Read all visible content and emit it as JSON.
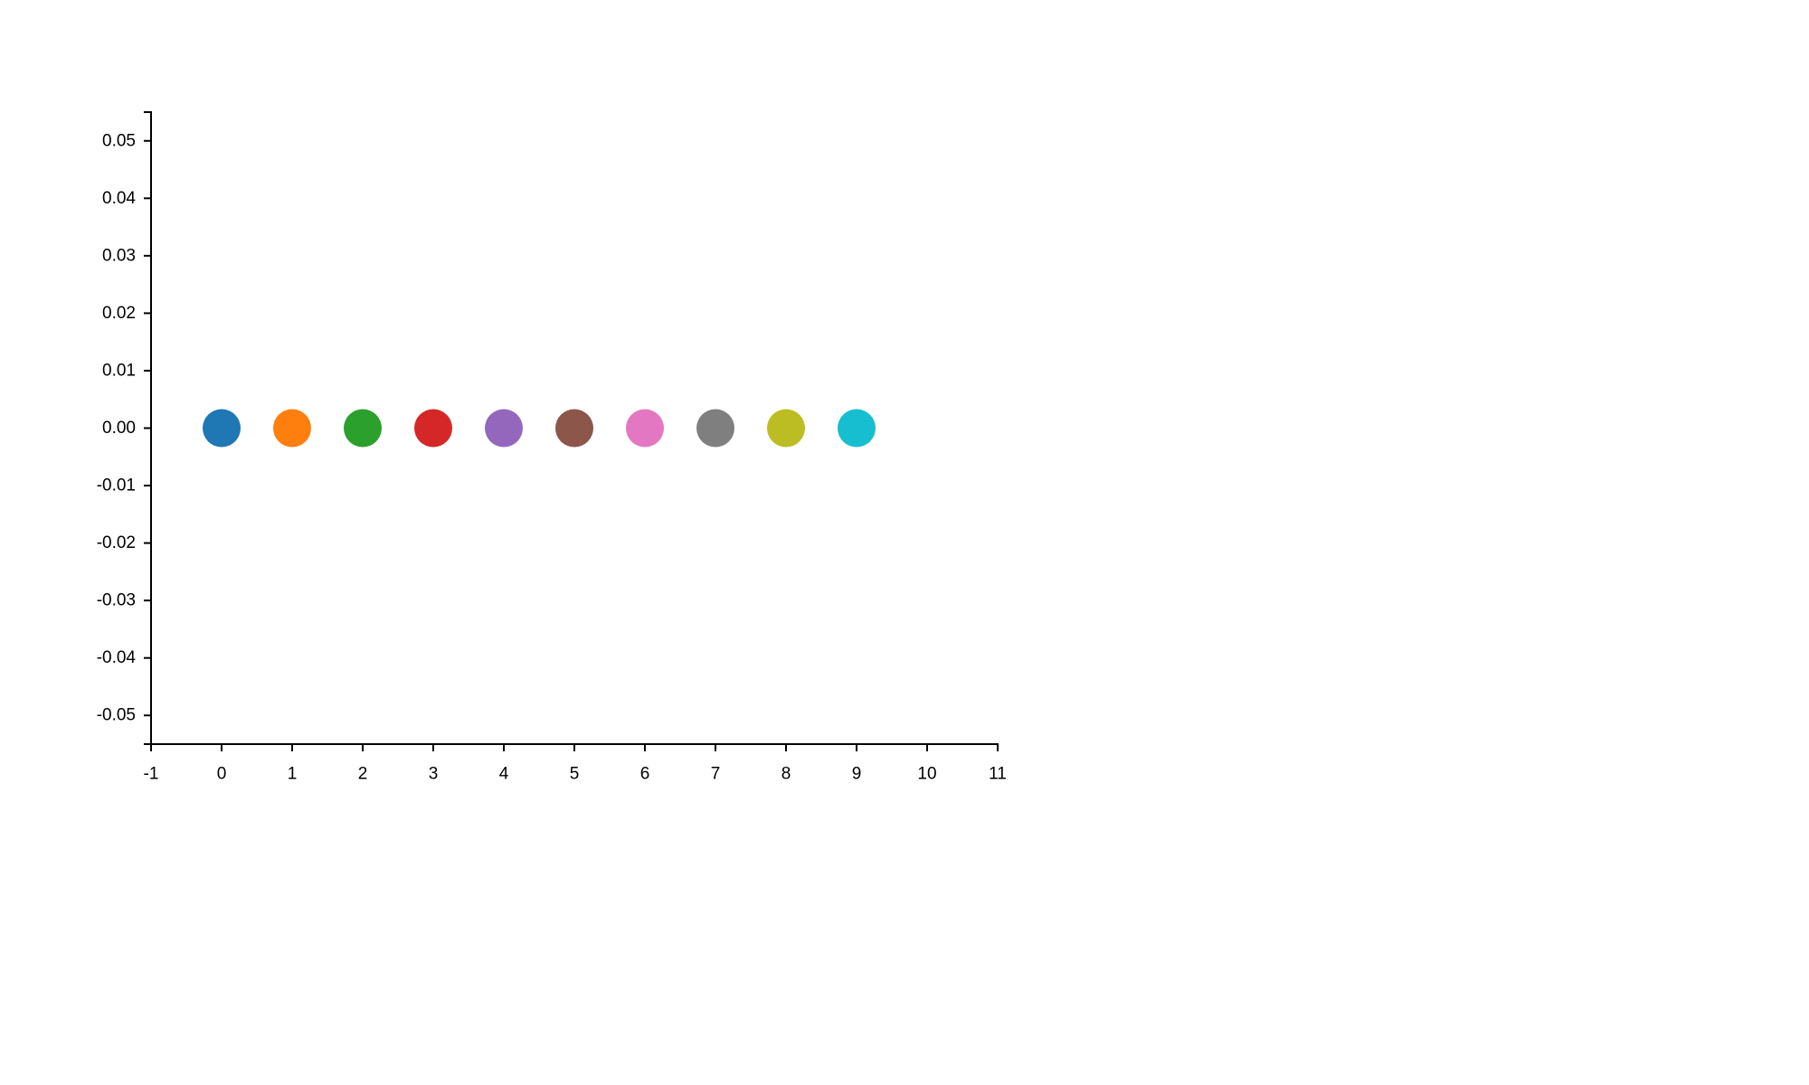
{
  "chart_data": {
    "type": "scatter",
    "title": "",
    "xlabel": "",
    "ylabel": "",
    "xlim": [
      -1,
      11
    ],
    "ylim": [
      -0.055,
      0.055
    ],
    "grid": false,
    "legend": "none",
    "x_ticks": [
      "-1",
      "0",
      "1",
      "2",
      "3",
      "4",
      "5",
      "6",
      "7",
      "8",
      "9",
      "10",
      "11"
    ],
    "y_ticks": [
      "0.05",
      "0.04",
      "0.03",
      "0.02",
      "0.01",
      "0.00",
      "-0.01",
      "-0.02",
      "-0.03",
      "-0.04",
      "-0.05"
    ],
    "points": [
      {
        "x": 0,
        "y": 0,
        "color": "#1f77b4"
      },
      {
        "x": 1,
        "y": 0,
        "color": "#ff7f0e"
      },
      {
        "x": 2,
        "y": 0,
        "color": "#2ca02c"
      },
      {
        "x": 3,
        "y": 0,
        "color": "#d62728"
      },
      {
        "x": 4,
        "y": 0,
        "color": "#9467bd"
      },
      {
        "x": 5,
        "y": 0,
        "color": "#8c564b"
      },
      {
        "x": 6,
        "y": 0,
        "color": "#e377c2"
      },
      {
        "x": 7,
        "y": 0,
        "color": "#7f7f7f"
      },
      {
        "x": 8,
        "y": 0,
        "color": "#bcbd22"
      },
      {
        "x": 9,
        "y": 0,
        "color": "#17becf"
      }
    ]
  }
}
